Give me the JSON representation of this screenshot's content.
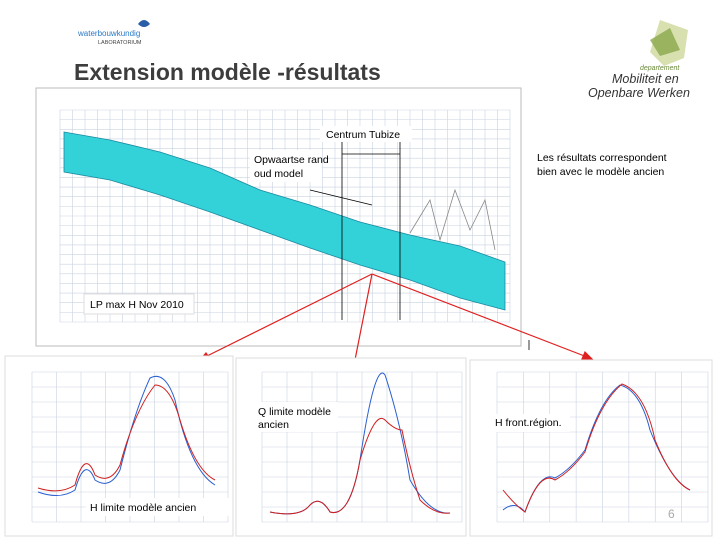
{
  "header": {
    "logo_line1": "waterbouwkundig",
    "logo_line2": "LABORATORIUM",
    "title": "Extension modèle -résultats",
    "dept_label": "departement",
    "dept_line1": "Mobiliteit en",
    "dept_line2": "Openbare Werken"
  },
  "note": {
    "line1": "Les résultats correspondent",
    "line2": "bien avec le modèle ancien"
  },
  "main_figure": {
    "label_centrum": "Centrum Tubize",
    "label_rand_line1": "Opwaartse rand",
    "label_rand_line2": "oud model",
    "caption": "LP max H Nov 2010"
  },
  "panels": [
    {
      "caption": "H limite modèle ancien"
    },
    {
      "caption_line1": "Q limite modèle",
      "caption_line2": "ancien"
    },
    {
      "caption": "H front.région."
    }
  ],
  "page_number": "6"
}
